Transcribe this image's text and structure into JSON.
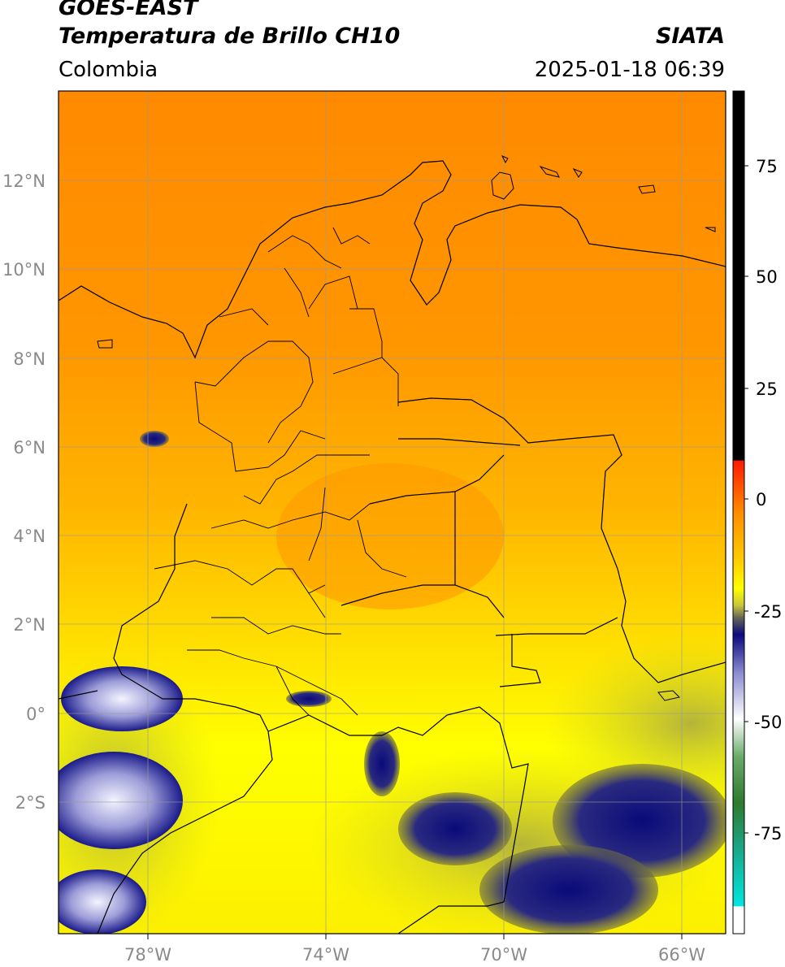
{
  "header": {
    "satellite": "GOES-EAST",
    "product": "Temperatura de Brillo CH10",
    "region": "Colombia",
    "agency": "SIATA",
    "datetime": "2025-01-18 06:39"
  },
  "map": {
    "lon_range": [
      -80,
      -65
    ],
    "lat_range": [
      -5,
      14
    ],
    "lon_ticks": [
      {
        "value": -78,
        "label": "78°W"
      },
      {
        "value": -74,
        "label": "74°W"
      },
      {
        "value": -70,
        "label": "70°W"
      },
      {
        "value": -66,
        "label": "66°W"
      }
    ],
    "lat_ticks": [
      {
        "value": 12,
        "label": "12°N"
      },
      {
        "value": 10,
        "label": "10°N"
      },
      {
        "value": 8,
        "label": "8°N"
      },
      {
        "value": 6,
        "label": "6°N"
      },
      {
        "value": 4,
        "label": "4°N"
      },
      {
        "value": 2,
        "label": "2°N"
      },
      {
        "value": 0,
        "label": "0°"
      },
      {
        "value": -2,
        "label": "2°S"
      }
    ],
    "gridlines": true
  },
  "colorbar": {
    "range": [
      -97,
      90
    ],
    "ticks": [
      {
        "value": 75,
        "label": "75"
      },
      {
        "value": 50,
        "label": "50"
      },
      {
        "value": 25,
        "label": "25"
      },
      {
        "value": 0,
        "label": "0"
      },
      {
        "value": -25,
        "label": "-25"
      },
      {
        "value": -50,
        "label": "-50"
      },
      {
        "value": -75,
        "label": "-75"
      }
    ],
    "colors": {
      "black": "#000000",
      "red": "#ff1a00",
      "orange": "#ff9900",
      "yellow": "#ffff00",
      "olive": "#8c8c3a",
      "navy": "#0a0a80",
      "white": "#ffffff",
      "green": "#2e8b2e",
      "teal": "#00e0d0"
    }
  }
}
